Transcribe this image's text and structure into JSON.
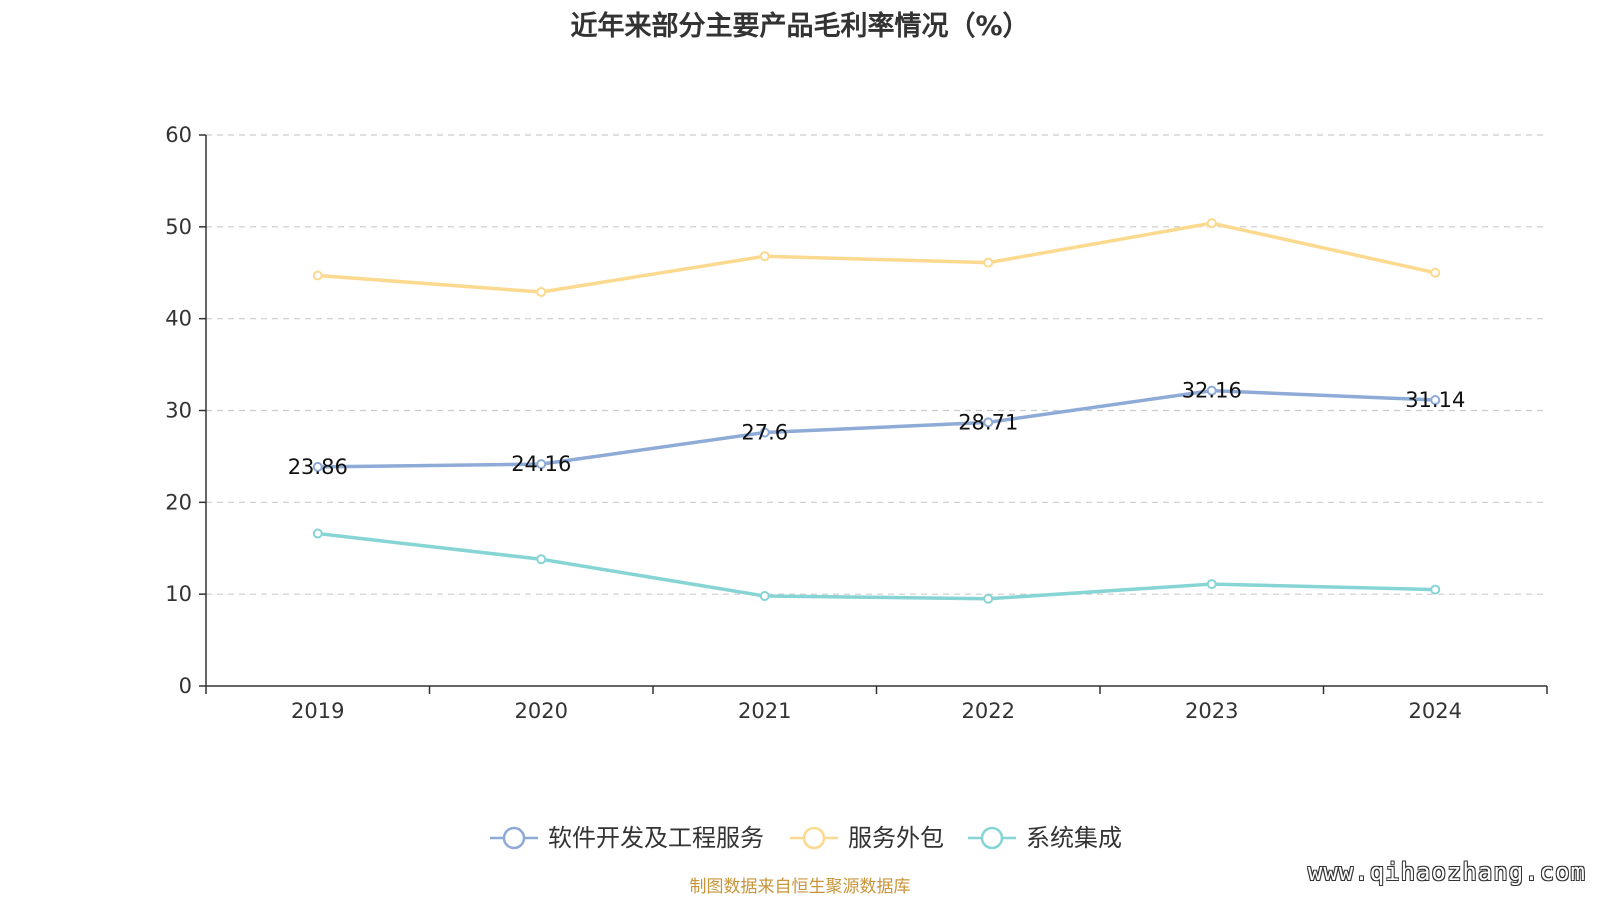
{
  "chart_data": {
    "type": "line",
    "title": "近年来部分主要产品毛利率情况（%）",
    "categories": [
      "2019",
      "2020",
      "2021",
      "2022",
      "2023",
      "2024"
    ],
    "ylim": [
      0,
      60
    ],
    "yticks": [
      0,
      10,
      20,
      30,
      40,
      50,
      60
    ],
    "grid": true,
    "legend_position": "bottom",
    "series": [
      {
        "name": "软件开发及工程服务",
        "color": "#8eaad7",
        "values": [
          23.86,
          24.16,
          27.6,
          28.71,
          32.16,
          31.14
        ],
        "labels": [
          "23.86",
          "24.16",
          "27.6",
          "28.71",
          "32.16",
          "31.14"
        ]
      },
      {
        "name": "服务外包",
        "color": "#fbd98f",
        "values": [
          44.7,
          42.9,
          46.8,
          46.1,
          50.4,
          45.0
        ],
        "labels": []
      },
      {
        "name": "系统集成",
        "color": "#86d4d4",
        "values": [
          16.6,
          13.8,
          9.8,
          9.5,
          11.1,
          10.5
        ],
        "labels": []
      }
    ]
  },
  "footer": {
    "source": "制图数据来自恒生聚源数据库",
    "watermark": "www.qihaozhang.com"
  }
}
